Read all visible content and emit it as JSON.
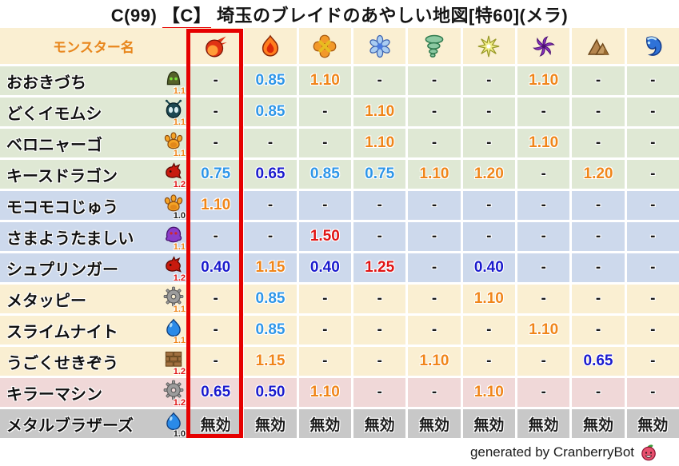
{
  "title": {
    "prefix": "C(99)",
    "underlined": "【C】",
    "suffix": "埼玉のブレイドのあやしい地図[特60](メラ)"
  },
  "footer": {
    "text": "generated by CranberryBot",
    "icon": "cranberry-icon"
  },
  "palette": {
    "orange": "#f08519",
    "lightblue": "#2e96e8",
    "darkblue": "#1a1acd",
    "red": "#e01414",
    "black": "#1a1a1a",
    "row_green": "#dfe8d4",
    "row_blue": "#cdd9ec",
    "row_cream": "#faefd2",
    "row_pink": "#f0d8d8",
    "row_gray": "#c8c8c8",
    "header_bg": "#faefd2",
    "header_text": "#e8861c",
    "highlight_border": "#e60000"
  },
  "chart_data": {
    "type": "table",
    "name_column_header": "モンスター名",
    "element_columns": [
      {
        "icon": "fireball-icon",
        "highlighted": true
      },
      {
        "icon": "flame-icon",
        "highlighted": false
      },
      {
        "icon": "explosion-icon",
        "highlighted": false
      },
      {
        "icon": "ice-icon",
        "highlighted": false
      },
      {
        "icon": "wind-icon",
        "highlighted": false
      },
      {
        "icon": "light-icon",
        "highlighted": false
      },
      {
        "icon": "dark-icon",
        "highlighted": false
      },
      {
        "icon": "earth-icon",
        "highlighted": false
      },
      {
        "icon": "water-icon",
        "highlighted": false
      }
    ],
    "rows": [
      {
        "name": "おおきづち",
        "icon": "mallet-monster-icon",
        "level_multiplier": "1.1",
        "multiplier_color": "orange",
        "row_theme": "green",
        "values": [
          "-",
          "0.85",
          "1.10",
          "-",
          "-",
          "-",
          "1.10",
          "-",
          "-"
        ],
        "value_colors": [
          "black",
          "lightblue",
          "orange",
          "black",
          "black",
          "black",
          "orange",
          "black",
          "black"
        ]
      },
      {
        "name": "どくイモムシ",
        "icon": "bug-monster-icon",
        "level_multiplier": "1.1",
        "multiplier_color": "orange",
        "row_theme": "green",
        "values": [
          "-",
          "0.85",
          "-",
          "1.10",
          "-",
          "-",
          "-",
          "-",
          "-"
        ],
        "value_colors": [
          "black",
          "lightblue",
          "black",
          "orange",
          "black",
          "black",
          "black",
          "black",
          "black"
        ]
      },
      {
        "name": "ベロニャーゴ",
        "icon": "paw-monster-icon",
        "level_multiplier": "1.1",
        "multiplier_color": "orange",
        "row_theme": "green",
        "values": [
          "-",
          "-",
          "-",
          "1.10",
          "-",
          "-",
          "1.10",
          "-",
          "-"
        ],
        "value_colors": [
          "black",
          "black",
          "black",
          "orange",
          "black",
          "black",
          "orange",
          "black",
          "black"
        ]
      },
      {
        "name": "キースドラゴン",
        "icon": "dragon-monster-icon",
        "level_multiplier": "1.2",
        "multiplier_color": "red",
        "row_theme": "green",
        "values": [
          "0.75",
          "0.65",
          "0.85",
          "0.75",
          "1.10",
          "1.20",
          "-",
          "1.20",
          "-"
        ],
        "value_colors": [
          "lightblue",
          "darkblue",
          "lightblue",
          "lightblue",
          "orange",
          "orange",
          "black",
          "orange",
          "black"
        ]
      },
      {
        "name": "モコモコじゅう",
        "icon": "paw-monster-icon",
        "level_multiplier": "1.0",
        "multiplier_color": "black",
        "row_theme": "blue",
        "values": [
          "1.10",
          "-",
          "-",
          "-",
          "-",
          "-",
          "-",
          "-",
          "-"
        ],
        "value_colors": [
          "orange",
          "black",
          "black",
          "black",
          "black",
          "black",
          "black",
          "black",
          "black"
        ]
      },
      {
        "name": "さまようたましい",
        "icon": "ghost-monster-icon",
        "level_multiplier": "1.1",
        "multiplier_color": "orange",
        "row_theme": "blue",
        "values": [
          "-",
          "-",
          "1.50",
          "-",
          "-",
          "-",
          "-",
          "-",
          "-"
        ],
        "value_colors": [
          "black",
          "black",
          "red",
          "black",
          "black",
          "black",
          "black",
          "black",
          "black"
        ]
      },
      {
        "name": "シュプリンガー",
        "icon": "dragon-monster-icon",
        "level_multiplier": "1.2",
        "multiplier_color": "red",
        "row_theme": "blue",
        "values": [
          "0.40",
          "1.15",
          "0.40",
          "1.25",
          "-",
          "0.40",
          "-",
          "-",
          "-"
        ],
        "value_colors": [
          "darkblue",
          "orange",
          "darkblue",
          "red",
          "black",
          "darkblue",
          "black",
          "black",
          "black"
        ]
      },
      {
        "name": "メタッピー",
        "icon": "gear-monster-icon",
        "level_multiplier": "1.1",
        "multiplier_color": "orange",
        "row_theme": "cream",
        "values": [
          "-",
          "0.85",
          "-",
          "-",
          "-",
          "1.10",
          "-",
          "-",
          "-"
        ],
        "value_colors": [
          "black",
          "lightblue",
          "black",
          "black",
          "black",
          "orange",
          "black",
          "black",
          "black"
        ]
      },
      {
        "name": "スライムナイト",
        "icon": "slime-monster-icon",
        "level_multiplier": "1.1",
        "multiplier_color": "orange",
        "row_theme": "cream",
        "values": [
          "-",
          "0.85",
          "-",
          "-",
          "-",
          "-",
          "1.10",
          "-",
          "-"
        ],
        "value_colors": [
          "black",
          "lightblue",
          "black",
          "black",
          "black",
          "black",
          "orange",
          "black",
          "black"
        ]
      },
      {
        "name": "うごくせきぞう",
        "icon": "bricks-monster-icon",
        "level_multiplier": "1.2",
        "multiplier_color": "red",
        "row_theme": "cream",
        "values": [
          "-",
          "1.15",
          "-",
          "-",
          "1.10",
          "-",
          "-",
          "0.65",
          "-"
        ],
        "value_colors": [
          "black",
          "orange",
          "black",
          "black",
          "orange",
          "black",
          "black",
          "darkblue",
          "black"
        ]
      },
      {
        "name": "キラーマシン",
        "icon": "gear-monster-icon",
        "level_multiplier": "1.2",
        "multiplier_color": "red",
        "row_theme": "pink",
        "values": [
          "0.65",
          "0.50",
          "1.10",
          "-",
          "-",
          "1.10",
          "-",
          "-",
          "-"
        ],
        "value_colors": [
          "darkblue",
          "darkblue",
          "orange",
          "black",
          "black",
          "orange",
          "black",
          "black",
          "black"
        ]
      },
      {
        "name": "メタルブラザーズ",
        "icon": "slime-monster-icon",
        "level_multiplier": "1.0",
        "multiplier_color": "black",
        "row_theme": "gray",
        "values": [
          "無効",
          "無効",
          "無効",
          "無効",
          "無効",
          "無効",
          "無効",
          "無効",
          "無効"
        ],
        "value_colors": [
          "black",
          "black",
          "black",
          "black",
          "black",
          "black",
          "black",
          "black",
          "black"
        ]
      }
    ]
  }
}
